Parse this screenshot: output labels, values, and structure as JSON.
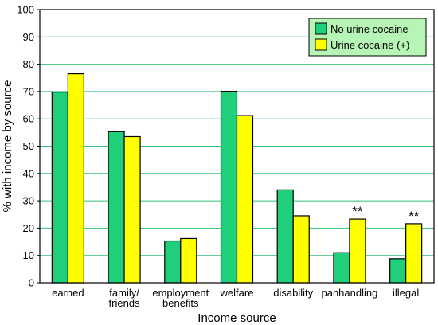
{
  "chart_data": {
    "type": "bar",
    "categories": [
      [
        "earned"
      ],
      [
        "family/",
        "friends"
      ],
      [
        "employment",
        "benefits"
      ],
      [
        "welfare"
      ],
      [
        "disability"
      ],
      [
        "panhandling"
      ],
      [
        "illegal"
      ]
    ],
    "series": [
      {
        "name": "No urine cocaine",
        "color": "#1fcf7a",
        "values": [
          69.8,
          55.3,
          15.3,
          70.1,
          34.0,
          11.0,
          8.8
        ]
      },
      {
        "name": "Urine cocaine (+)",
        "color": "#ffff00",
        "values": [
          76.5,
          53.5,
          16.2,
          61.2,
          24.5,
          23.3,
          21.6
        ]
      }
    ],
    "xlabel": "Income source",
    "ylabel": "% with income by source",
    "ylim": [
      0,
      100
    ],
    "yticks": [
      0,
      10,
      20,
      30,
      40,
      50,
      60,
      70,
      80,
      90,
      100
    ],
    "grid": true,
    "gridColor": "#35c27a",
    "legend_position": "top-right",
    "legendBg": "#b6f5b6",
    "annotations": [
      {
        "category_index": 5,
        "text": "**"
      },
      {
        "category_index": 6,
        "text": "**"
      }
    ]
  }
}
